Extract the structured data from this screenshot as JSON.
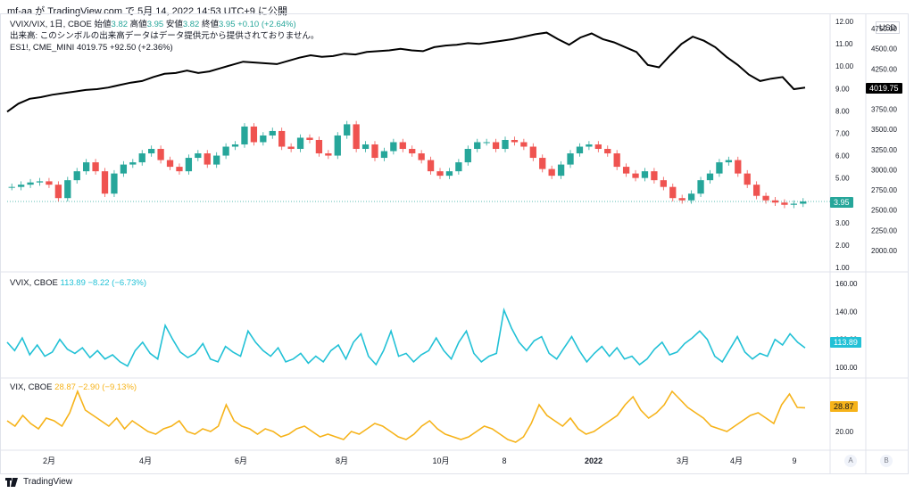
{
  "header": {
    "text": "mf-aa が TradingView.com で 5月 14, 2022 14:53 UTC+9 に公開"
  },
  "legend_main": {
    "symbol": "VVIX/VIX, 1日, CBOE",
    "o_label": "始値",
    "o": "3.82",
    "h_label": "高値",
    "h": "3.95",
    "l_label": "安値",
    "l": "3.82",
    "c_label": "終値",
    "c": "3.95",
    "change": "+0.10 (+2.64%)",
    "note": "出来高: このシンボルの出来高データはデータ提供元から提供されておりません。",
    "es_symbol": "ES1!, CME_MINI",
    "es_value": "4019.75",
    "es_change": "+92.50 (+2.36%)"
  },
  "legend_vvix": {
    "symbol": "VVIX, CBOE",
    "value": "113.89",
    "change": "−8.22 (−6.73%)"
  },
  "legend_vix": {
    "symbol": "VIX, CBOE",
    "value": "28.87",
    "change": "−2.90 (−9.13%)"
  },
  "currency": "USD",
  "price_labels": {
    "es": "4019.75",
    "ratio": "3.95",
    "vvix": "113.89",
    "vix": "28.87"
  },
  "scale_buttons": [
    "A",
    "B"
  ],
  "brand": "TradingView",
  "colors": {
    "up": "#26a69a",
    "down": "#ef5350",
    "es": "#000000",
    "vvix": "#22c1d6",
    "vix": "#f6b31a"
  },
  "chart_data": [
    {
      "type": "line",
      "title": "VVIX/VIX, 1日, CBOE",
      "x_ticks": [
        "2月",
        "4月",
        "6月",
        "8月",
        "10月",
        "8",
        "2022",
        "3月",
        "4月",
        "9"
      ],
      "y_ticks_right": [
        "12.00",
        "11.00",
        "10.00",
        "9.00",
        "8.00",
        "7.00",
        "6.00",
        "5.00",
        "4.00",
        "3.00",
        "2.00",
        "1.00"
      ],
      "y_ticks_es": [
        "4750.00",
        "4500.00",
        "4250.00",
        "3750.00",
        "3500.00",
        "3250.00",
        "3000.00",
        "2750.00",
        "2500.00",
        "2250.00",
        "2000.00"
      ],
      "ylim": [
        1.0,
        12.0
      ],
      "series": [
        {
          "name": "VVIX/VIX",
          "values": [
            4.6,
            4.7,
            4.8,
            4.85,
            4.7,
            4.1,
            4.9,
            5.3,
            5.7,
            5.3,
            4.3,
            5.2,
            5.6,
            5.7,
            6.1,
            6.3,
            5.8,
            5.5,
            5.3,
            5.9,
            6.1,
            5.6,
            6.0,
            6.4,
            6.5,
            7.3,
            6.6,
            6.9,
            7.1,
            6.4,
            6.3,
            6.8,
            6.7,
            6.1,
            6.0,
            6.9,
            7.4,
            6.3,
            6.5,
            5.9,
            6.2,
            6.6,
            6.3,
            6.1,
            5.8,
            5.3,
            5.1,
            5.3,
            5.7,
            6.3,
            6.6,
            6.6,
            6.3,
            6.7,
            6.6,
            6.4,
            5.9,
            5.4,
            5.1,
            5.6,
            6.1,
            6.4,
            6.5,
            6.3,
            6.1,
            5.5,
            5.2,
            5.0,
            5.3,
            4.9,
            4.6,
            4.1,
            4.0,
            4.3,
            4.9,
            5.2,
            5.7,
            5.8,
            5.2,
            4.7,
            4.2,
            4.0,
            3.9,
            3.8,
            3.85,
            3.95
          ]
        },
        {
          "name": "ES1!, CME_MINI",
          "values": [
            3720,
            3820,
            3880,
            3900,
            3930,
            3950,
            3970,
            3990,
            4000,
            4020,
            4050,
            4080,
            4100,
            4150,
            4190,
            4200,
            4230,
            4200,
            4220,
            4260,
            4300,
            4340,
            4330,
            4320,
            4310,
            4350,
            4390,
            4420,
            4400,
            4410,
            4440,
            4430,
            4460,
            4470,
            4480,
            4500,
            4480,
            4470,
            4520,
            4540,
            4550,
            4570,
            4560,
            4580,
            4600,
            4620,
            4650,
            4680,
            4700,
            4620,
            4550,
            4640,
            4690,
            4620,
            4580,
            4520,
            4460,
            4300,
            4270,
            4420,
            4560,
            4650,
            4600,
            4520,
            4400,
            4300,
            4180,
            4100,
            4130,
            4150,
            4000,
            4019.75
          ]
        }
      ]
    },
    {
      "type": "line",
      "title": "VVIX, CBOE",
      "ylabel": "",
      "y_ticks_right": [
        "160.00",
        "140.00",
        "120.00",
        "100.00"
      ],
      "ylim": [
        95,
        165
      ],
      "series": [
        {
          "name": "VVIX",
          "values": [
            118,
            112,
            121,
            109,
            116,
            108,
            111,
            120,
            113,
            110,
            114,
            107,
            112,
            106,
            109,
            104,
            101,
            112,
            118,
            110,
            106,
            130,
            120,
            111,
            107,
            110,
            117,
            106,
            104,
            115,
            111,
            108,
            126,
            118,
            112,
            108,
            114,
            104,
            106,
            110,
            103,
            108,
            104,
            112,
            116,
            106,
            118,
            124,
            108,
            102,
            112,
            126,
            108,
            110,
            104,
            109,
            112,
            121,
            112,
            106,
            118,
            126,
            110,
            104,
            108,
            110,
            141,
            128,
            118,
            112,
            119,
            122,
            110,
            106,
            114,
            122,
            112,
            104,
            110,
            115,
            108,
            114,
            106,
            108,
            102,
            106,
            113,
            118,
            109,
            111,
            117,
            121,
            126,
            120,
            108,
            104,
            113,
            122,
            111,
            106,
            110,
            108,
            120,
            116,
            124,
            118,
            113.89
          ]
        }
      ]
    },
    {
      "type": "line",
      "title": "VIX, CBOE",
      "ylabel": "",
      "y_ticks_right": [
        "20.00"
      ],
      "ylim": [
        14,
        38
      ],
      "series": [
        {
          "name": "VIX",
          "values": [
            24,
            22,
            26,
            23,
            21,
            25,
            24,
            22,
            27,
            35,
            28,
            26,
            24,
            22,
            25,
            21,
            24,
            22,
            20,
            19,
            21,
            22,
            24,
            20,
            19,
            21,
            20,
            22,
            30,
            24,
            22,
            21,
            19,
            21,
            20,
            18,
            19,
            21,
            22,
            20,
            18,
            19,
            18,
            17,
            20,
            19,
            21,
            23,
            22,
            20,
            18,
            17,
            19,
            22,
            24,
            21,
            19,
            18,
            17,
            18,
            20,
            22,
            21,
            19,
            17,
            16,
            18,
            23,
            30,
            26,
            24,
            22,
            25,
            21,
            19,
            20,
            22,
            24,
            26,
            30,
            33,
            28,
            25,
            27,
            30,
            35,
            32,
            29,
            27,
            25,
            22,
            21,
            20,
            22,
            24,
            26,
            27,
            25,
            23,
            30,
            34,
            29,
            28.87
          ]
        }
      ]
    }
  ]
}
